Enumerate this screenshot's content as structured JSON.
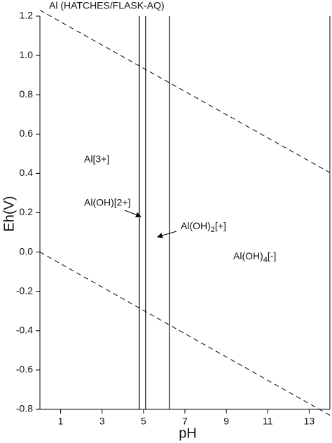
{
  "chart_data": {
    "type": "line",
    "title": "Al (HATCHES/FLASK-AQ)",
    "x_label": "pH",
    "y_label": "Eh(V)",
    "xlim": [
      0,
      14
    ],
    "ylim": [
      -0.8,
      1.2
    ],
    "xticks": [
      1,
      3,
      5,
      7,
      9,
      11,
      13
    ],
    "yticks": [
      -0.8,
      -0.6,
      -0.4,
      -0.2,
      {
        "value": 0,
        "label": "0.0"
      },
      0.2,
      0.4,
      0.6,
      0.8,
      {
        "value": 1,
        "label": "1.0"
      },
      1.2
    ],
    "series": [
      {
        "x": [
          0,
          14
        ],
        "values": [
          1.23,
          0.404
        ],
        "color": "#000000",
        "dash": true
      },
      {
        "x": [
          0,
          14
        ],
        "values": [
          0,
          -0.83
        ],
        "color": "#000000",
        "dash": true
      }
    ],
    "boundaries": [
      4.8,
      5.1,
      6.25
    ],
    "annotations": [
      "Al[3+]",
      "Al(OH)[2+]",
      [
        "Al(OH)",
        "2",
        "[+]"
      ],
      [
        "Al(OH)",
        "4",
        "[-]"
      ]
    ]
  }
}
